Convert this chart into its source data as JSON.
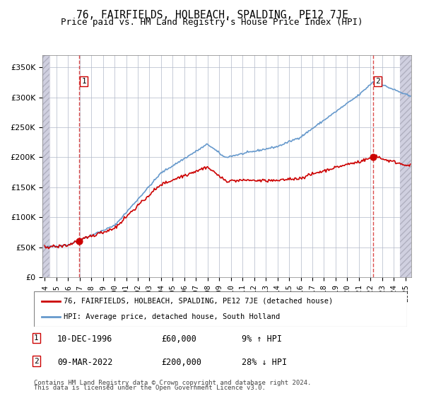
{
  "title": "76, FAIRFIELDS, HOLBEACH, SPALDING, PE12 7JE",
  "subtitle": "Price paid vs. HM Land Registry's House Price Index (HPI)",
  "legend_line1": "76, FAIRFIELDS, HOLBEACH, SPALDING, PE12 7JE (detached house)",
  "legend_line2": "HPI: Average price, detached house, South Holland",
  "transaction1_date": "10-DEC-1996",
  "transaction1_price": 60000,
  "transaction1_hpi": "9% ↑ HPI",
  "transaction2_date": "09-MAR-2022",
  "transaction2_price": 200000,
  "transaction2_hpi": "28% ↓ HPI",
  "footer": "Contains HM Land Registry data © Crown copyright and database right 2024.\nThis data is licensed under the Open Government Licence v3.0.",
  "property_color": "#cc0000",
  "hpi_color": "#6699cc",
  "background_hatch_color": "#e8e8f0",
  "ylim": [
    0,
    370000
  ],
  "yticks": [
    0,
    50000,
    100000,
    150000,
    200000,
    250000,
    300000,
    350000
  ],
  "ytick_labels": [
    "£0",
    "£50K",
    "£100K",
    "£150K",
    "£200K",
    "£250K",
    "£300K",
    "£350K"
  ]
}
